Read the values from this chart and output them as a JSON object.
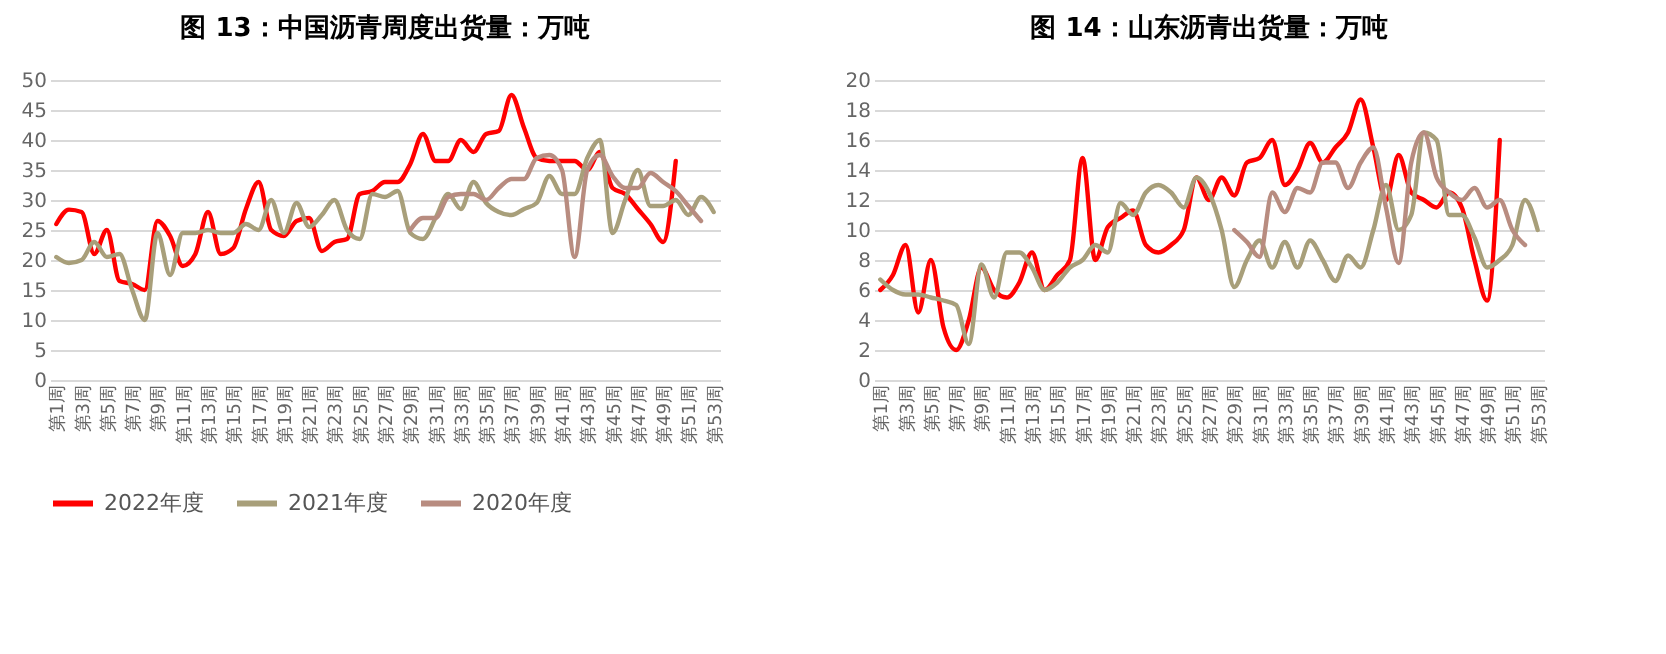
{
  "chart_data": [
    {
      "type": "line",
      "title": "图 13：中国沥青周度出货量：万吨",
      "categories": [
        "第1周",
        null,
        "第3周",
        null,
        "第5周",
        null,
        "第7周",
        null,
        "第9周",
        null,
        "第11周",
        null,
        "第13周",
        null,
        "第15周",
        null,
        "第17周",
        null,
        "第19周",
        null,
        "第21周",
        null,
        "第23周",
        null,
        "第25周",
        null,
        "第27周",
        null,
        "第29周",
        null,
        "第31周",
        null,
        "第33周",
        null,
        "第35周",
        null,
        "第37周",
        null,
        "第39周",
        null,
        "第41周",
        null,
        "第43周",
        null,
        "第45周",
        null,
        "第47周",
        null,
        "第49周",
        null,
        "第51周",
        null,
        "第53周"
      ],
      "series": [
        {
          "name": "2022年度",
          "color": "#ff0000",
          "values": [
            26,
            28.4,
            28,
            21,
            25,
            16.5,
            16,
            15,
            26.5,
            24,
            19,
            21,
            28,
            21,
            22,
            28.5,
            33,
            25,
            24,
            26.5,
            27,
            21.5,
            23,
            23.5,
            31,
            31.5,
            33,
            33,
            36,
            41,
            36.5,
            36.5,
            40,
            38,
            41,
            41.5,
            47.5,
            42,
            37,
            36.5,
            36.5,
            36.5,
            35,
            38,
            32,
            31,
            28.5,
            26,
            23,
            36.5,
            null,
            null,
            null
          ]
        },
        {
          "name": "2021年度",
          "color": "#a89f7a",
          "values": [
            20.5,
            19.5,
            20,
            23,
            20.5,
            21,
            15,
            10,
            24.5,
            17.5,
            24.5,
            24.5,
            25,
            24.5,
            24.5,
            26,
            25,
            30,
            24.5,
            29.5,
            25.5,
            27.5,
            30,
            25,
            23.5,
            31,
            30.5,
            31.5,
            24.5,
            23.5,
            27,
            31,
            28.5,
            33,
            29.5,
            28,
            27.5,
            28.5,
            29.5,
            34,
            31,
            31,
            37,
            40,
            24.5,
            30,
            35,
            29,
            29,
            30,
            27.5,
            30.5,
            28
          ]
        },
        {
          "name": "2020年度",
          "color": "#b88c80",
          "values": [
            null,
            null,
            null,
            null,
            null,
            null,
            null,
            null,
            null,
            null,
            null,
            null,
            null,
            null,
            null,
            null,
            null,
            null,
            null,
            null,
            null,
            null,
            null,
            null,
            null,
            null,
            null,
            null,
            25,
            27,
            27,
            30.5,
            31,
            31,
            30,
            32,
            33.5,
            33.5,
            37,
            37.5,
            35,
            20.5,
            35,
            37.5,
            34,
            32,
            32,
            34.5,
            33,
            31.5,
            29,
            26.5,
            null
          ]
        }
      ],
      "ylim": [
        0,
        50
      ],
      "yticks": [
        0,
        5,
        10,
        15,
        20,
        25,
        30,
        35,
        40,
        45,
        50
      ],
      "grid": "y",
      "legend": "bottom",
      "line_style": "solid",
      "marker": "none"
    },
    {
      "type": "line",
      "title": "图 14：山东沥青出货量：万吨",
      "categories": [
        "第1周",
        null,
        "第3周",
        null,
        "第5周",
        null,
        "第7周",
        null,
        "第9周",
        null,
        "第11周",
        null,
        "第13周",
        null,
        "第15周",
        null,
        "第17周",
        null,
        "第19周",
        null,
        "第21周",
        null,
        "第23周",
        null,
        "第25周",
        null,
        "第27周",
        null,
        "第29周",
        null,
        "第31周",
        null,
        "第33周",
        null,
        "第35周",
        null,
        "第37周",
        null,
        "第39周",
        null,
        "第41周",
        null,
        "第43周",
        null,
        "第45周",
        null,
        "第47周",
        null,
        "第49周",
        null,
        "第51周",
        null,
        "第53周"
      ],
      "series": [
        {
          "name": "2022年度",
          "color": "#ff0000",
          "values": [
            6,
            7,
            9,
            4.5,
            8,
            3.5,
            2,
            4,
            7.5,
            6,
            5.5,
            6.5,
            8.5,
            6,
            7,
            8,
            14.8,
            8,
            10.2,
            10.8,
            11.3,
            9,
            8.5,
            9,
            10,
            13.5,
            12,
            13.5,
            12.3,
            14.5,
            14.8,
            16,
            13,
            14,
            15.8,
            14.5,
            15.5,
            16.5,
            18.7,
            15.5,
            12,
            15,
            12.5,
            12,
            11.5,
            12.5,
            11.5,
            8,
            5.3,
            16,
            null,
            null,
            null
          ]
        },
        {
          "name": "2021年度",
          "color": "#a89f7a",
          "values": [
            6.7,
            6,
            5.7,
            5.7,
            5.5,
            5.3,
            5,
            2.4,
            7.7,
            5.5,
            8.5,
            8.5,
            7.5,
            6,
            6.5,
            7.5,
            8,
            9,
            8.5,
            11.8,
            11,
            12.5,
            13,
            12.5,
            11.5,
            13.5,
            12.5,
            10,
            6.2,
            8,
            9.3,
            7.5,
            9.2,
            7.5,
            9.3,
            8,
            6.6,
            8.3,
            7.5,
            10,
            13,
            10,
            11,
            16.5,
            16,
            11,
            11,
            9.5,
            7.5,
            8,
            9,
            12,
            10
          ]
        },
        {
          "name": "2020年度",
          "color": "#b88c80",
          "values": [
            null,
            null,
            null,
            null,
            null,
            null,
            null,
            null,
            null,
            null,
            null,
            null,
            null,
            null,
            null,
            null,
            null,
            null,
            null,
            null,
            null,
            null,
            null,
            null,
            null,
            null,
            null,
            null,
            10,
            9.2,
            8.2,
            12.5,
            11.2,
            12.8,
            12.5,
            14.5,
            14.5,
            12.8,
            14.5,
            15.5,
            11.5,
            7.8,
            14.5,
            16.5,
            13.5,
            12.5,
            12,
            12.8,
            11.5,
            12,
            10,
            9,
            null
          ]
        }
      ],
      "ylim": [
        0,
        20
      ],
      "yticks": [
        0,
        2,
        4,
        6,
        8,
        10,
        12,
        14,
        16,
        18,
        20
      ],
      "grid": "y",
      "legend": "bottom",
      "line_style": "solid",
      "marker": "none"
    }
  ]
}
